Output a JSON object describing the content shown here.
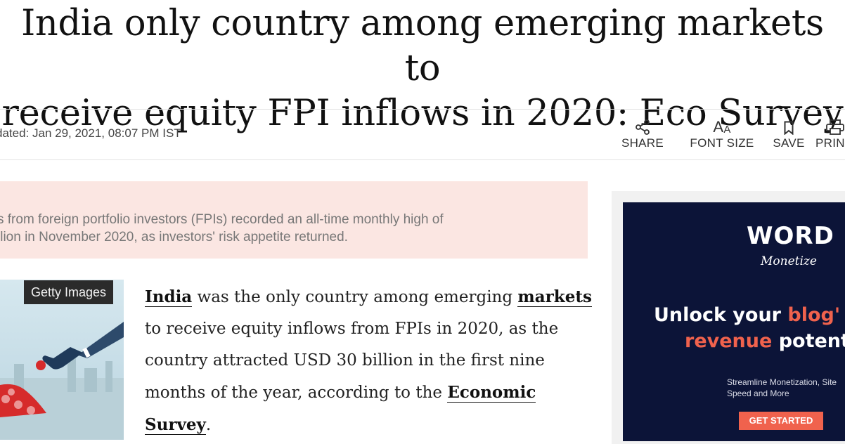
{
  "headline": {
    "line1": "India only country among emerging markets to",
    "line2": "receive equity FPI inflows in 2020: Eco Survey"
  },
  "meta": {
    "updated": "dated: Jan 29, 2021, 08:07 PM IST"
  },
  "toolbar": {
    "share": "SHARE",
    "font_size": "FONT SIZE",
    "save": "SAVE",
    "print": "PRIN",
    "font_icon": "AA"
  },
  "synopsis": {
    "line1": "s from foreign portfolio investors (FPIs) recorded an all-time monthly high of",
    "line2": "llion in November 2020, as investors' risk appetite returned."
  },
  "image": {
    "credit": "Getty Images"
  },
  "article": {
    "link1": "India",
    "text1": " was the only country among emerging ",
    "link2": "markets",
    "text2": " to receive equity inflows from FPIs in 2020, as the country attracted USD 30 billion in the first nine months of the year, according to the ",
    "link3": "Economic Survey",
    "text3": "."
  },
  "ad": {
    "logo": "WORD",
    "logo_sub": "Monetize",
    "line1": "Unlock your ",
    "line1_accent": "blog'",
    "line2_accent": "revenue",
    "line2": " potent",
    "sub": "Streamline Monetization, Site Speed and More",
    "cta": "GET STARTED",
    "accent_color": "#f0624d",
    "bg_color": "#0c1438"
  }
}
